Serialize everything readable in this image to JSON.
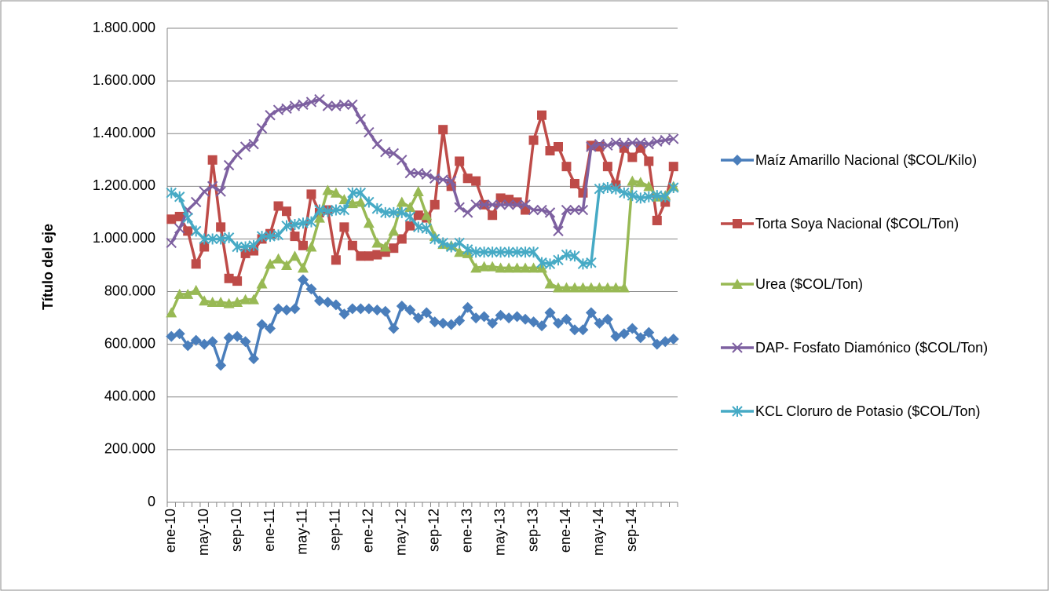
{
  "chart_data": {
    "type": "line",
    "y_label": "Título del eje",
    "grid": true,
    "legend": "right",
    "categories": [
      "ene-10",
      null,
      null,
      null,
      "may-10",
      null,
      null,
      null,
      "sep-10",
      null,
      null,
      null,
      "ene-11",
      null,
      null,
      null,
      "may-11",
      null,
      null,
      null,
      "sep-11",
      null,
      null,
      null,
      "ene-12",
      null,
      null,
      null,
      "may-12",
      null,
      null,
      null,
      "sep-12",
      null,
      null,
      null,
      "ene-13",
      null,
      null,
      null,
      "may-13",
      null,
      null,
      null,
      "sep-13",
      null,
      null,
      null,
      "ene-14",
      null,
      null,
      null,
      "may-14",
      null,
      null,
      null,
      "sep-14",
      null,
      null,
      null,
      null,
      null
    ],
    "ylim": [
      0,
      1800000
    ],
    "yticks": [
      0,
      {
        "value": 200000,
        "label": "200.000"
      },
      {
        "value": 400000,
        "label": "400.000"
      },
      {
        "value": 600000,
        "label": "600.000"
      },
      {
        "value": 800000,
        "label": "800.000"
      },
      {
        "value": 1000000,
        "label": "1.000.000"
      },
      {
        "value": 1200000,
        "label": "1.200.000"
      },
      {
        "value": 1400000,
        "label": "1.400.000"
      },
      {
        "value": 1600000,
        "label": "1.600.000"
      },
      {
        "value": 1800000,
        "label": "1.800.000"
      }
    ],
    "series": [
      {
        "name": "Maíz Amarillo Nacional ($COL/Kilo)",
        "color": "#4a7ebb",
        "marker": "diamond",
        "values": [
          630000,
          640000,
          595000,
          615000,
          600000,
          610000,
          520000,
          625000,
          630000,
          610000,
          545000,
          675000,
          660000,
          735000,
          730000,
          735000,
          845000,
          810000,
          765000,
          760000,
          750000,
          715000,
          735000,
          735000,
          735000,
          730000,
          725000,
          660000,
          745000,
          730000,
          700000,
          720000,
          685000,
          680000,
          675000,
          690000,
          740000,
          700000,
          705000,
          680000,
          710000,
          700000,
          705000,
          695000,
          685000,
          670000,
          720000,
          680000,
          695000,
          655000,
          655000,
          720000,
          680000,
          695000,
          630000,
          640000,
          660000,
          625000,
          645000,
          600000,
          610000,
          620000
        ]
      },
      {
        "name": "Torta Soya Nacional ($COL/Ton)",
        "color": "#be4b48",
        "marker": "square",
        "values": [
          1075000,
          1085000,
          1030000,
          905000,
          970000,
          1300000,
          1045000,
          850000,
          840000,
          945000,
          955000,
          1000000,
          1020000,
          1125000,
          1105000,
          1010000,
          975000,
          1170000,
          1100000,
          1110000,
          920000,
          1045000,
          975000,
          935000,
          935000,
          940000,
          950000,
          965000,
          1000000,
          1050000,
          1090000,
          1080000,
          1130000,
          1415000,
          1200000,
          1295000,
          1230000,
          1220000,
          1130000,
          1090000,
          1155000,
          1150000,
          1140000,
          1110000,
          1375000,
          1470000,
          1335000,
          1350000,
          1275000,
          1210000,
          1175000,
          1355000,
          1350000,
          1275000,
          1205000,
          1345000,
          1310000,
          1345000,
          1295000,
          1070000,
          1140000,
          1275000
        ]
      },
      {
        "name": "Urea ($COL/Ton)",
        "color": "#98b954",
        "marker": "triangle",
        "values": [
          720000,
          790000,
          790000,
          805000,
          765000,
          760000,
          760000,
          755000,
          760000,
          770000,
          770000,
          830000,
          905000,
          925000,
          900000,
          935000,
          890000,
          970000,
          1080000,
          1185000,
          1175000,
          1150000,
          1135000,
          1140000,
          1060000,
          985000,
          970000,
          1030000,
          1140000,
          1120000,
          1180000,
          1090000,
          1010000,
          980000,
          975000,
          950000,
          945000,
          890000,
          895000,
          895000,
          890000,
          890000,
          890000,
          890000,
          890000,
          890000,
          830000,
          815000,
          815000,
          815000,
          815000,
          815000,
          815000,
          815000,
          815000,
          815000,
          1220000,
          1215000,
          1200000,
          1160000,
          1165000,
          1200000
        ]
      },
      {
        "name": "DAP- Fosfato Diamónico ($COL/Ton)",
        "color": "#7d60a0",
        "marker": "x",
        "values": [
          985000,
          1040000,
          1110000,
          1140000,
          1180000,
          1200000,
          1180000,
          1280000,
          1320000,
          1350000,
          1360000,
          1420000,
          1470000,
          1490000,
          1495000,
          1505000,
          1510000,
          1520000,
          1530000,
          1505000,
          1505000,
          1510000,
          1510000,
          1455000,
          1405000,
          1360000,
          1330000,
          1325000,
          1300000,
          1250000,
          1250000,
          1245000,
          1230000,
          1225000,
          1220000,
          1120000,
          1100000,
          1130000,
          1130000,
          1130000,
          1130000,
          1130000,
          1130000,
          1130000,
          1110000,
          1110000,
          1100000,
          1030000,
          1110000,
          1110000,
          1110000,
          1350000,
          1360000,
          1355000,
          1365000,
          1360000,
          1365000,
          1365000,
          1360000,
          1370000,
          1375000,
          1380000
        ]
      },
      {
        "name": "KCL Cloruro de Potasio ($COL/Ton)",
        "color": "#46aac5",
        "marker": "star",
        "values": [
          1175000,
          1160000,
          1080000,
          1030000,
          1000000,
          1000000,
          1000000,
          1005000,
          970000,
          970000,
          975000,
          1010000,
          1010000,
          1015000,
          1050000,
          1055000,
          1060000,
          1065000,
          1110000,
          1105000,
          1110000,
          1110000,
          1175000,
          1175000,
          1140000,
          1115000,
          1100000,
          1100000,
          1100000,
          1085000,
          1045000,
          1040000,
          1000000,
          985000,
          970000,
          985000,
          960000,
          950000,
          950000,
          950000,
          950000,
          950000,
          950000,
          950000,
          950000,
          910000,
          905000,
          920000,
          940000,
          935000,
          905000,
          910000,
          1190000,
          1195000,
          1190000,
          1175000,
          1165000,
          1155000,
          1160000,
          1165000,
          1160000,
          1195000
        ]
      }
    ]
  }
}
